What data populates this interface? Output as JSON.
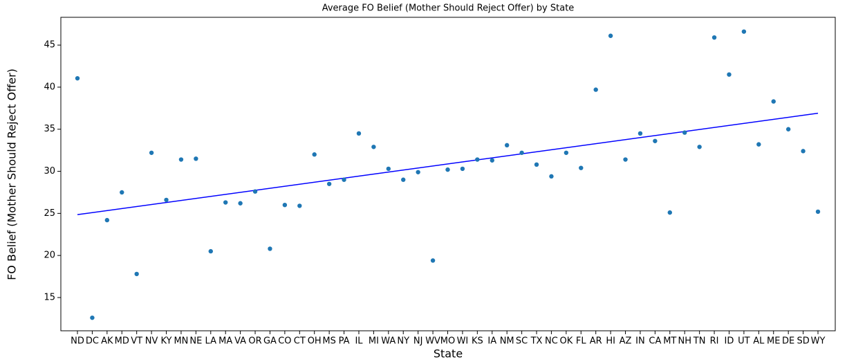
{
  "chart_data": {
    "type": "scatter",
    "title": "Average FO Belief (Mother Should Reject Offer) by State",
    "x_label": "State",
    "y_label": "FO Belief (Mother Should Reject Offer)",
    "categories": [
      "ND",
      "DC",
      "AK",
      "MD",
      "VT",
      "NV",
      "KY",
      "MN",
      "NE",
      "LA",
      "MA",
      "VA",
      "OR",
      "GA",
      "CO",
      "CT",
      "OH",
      "MS",
      "PA",
      "IL",
      "MI",
      "WA",
      "NY",
      "NJ",
      "WV",
      "MO",
      "WI",
      "KS",
      "IA",
      "NM",
      "SC",
      "TX",
      "NC",
      "OK",
      "FL",
      "AR",
      "HI",
      "AZ",
      "IN",
      "CA",
      "MT",
      "NH",
      "TN",
      "RI",
      "ID",
      "UT",
      "AL",
      "ME",
      "DE",
      "SD",
      "WY"
    ],
    "values": [
      41.05,
      12.6,
      24.2,
      27.5,
      17.8,
      32.2,
      26.6,
      31.4,
      31.5,
      20.5,
      26.3,
      26.2,
      27.6,
      20.8,
      26.0,
      25.9,
      32.0,
      28.5,
      29.0,
      34.5,
      32.9,
      30.3,
      29.0,
      29.9,
      19.4,
      30.2,
      30.3,
      31.4,
      31.3,
      33.1,
      32.2,
      30.8,
      29.4,
      32.2,
      30.4,
      39.7,
      46.1,
      31.4,
      34.5,
      33.6,
      25.1,
      34.6,
      32.9,
      45.9,
      41.5,
      46.6,
      33.2,
      38.3,
      35.0,
      32.4,
      25.2
    ],
    "color": "#1f77b4",
    "trend": {
      "values": [
        24.85,
        36.9
      ],
      "color": "#0000ff"
    },
    "ylim": [
      11.05,
      48.3
    ],
    "yticks": [
      15,
      20,
      25,
      30,
      35,
      40,
      45
    ]
  }
}
